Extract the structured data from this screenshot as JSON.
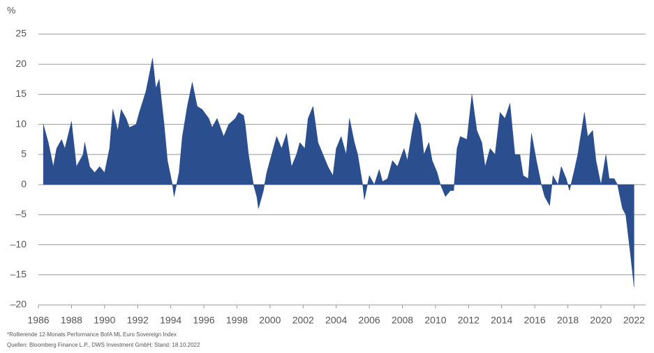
{
  "chart_data": {
    "type": "area",
    "y_unit": "%",
    "footnotes": [
      "*Rollierende 12-Monats Performance BofA ML Euro Sovereign Index",
      "Quellen: Bloomberg Finance L.P., DWS Investment GmbH; Stand: 18.10.2022"
    ],
    "color": "#2b4f8e",
    "x": [
      1986.3,
      1986.5,
      1986.6,
      1986.9,
      1987.1,
      1987.4,
      1987.6,
      1988.0,
      1988.3,
      1988.7,
      1988.8,
      1989.1,
      1989.4,
      1989.7,
      1990.0,
      1990.3,
      1990.5,
      1990.8,
      1991.0,
      1991.3,
      1991.5,
      1991.9,
      1992.1,
      1992.5,
      1992.9,
      1993.1,
      1993.3,
      1993.6,
      1993.8,
      1994.1,
      1994.2,
      1994.5,
      1994.7,
      1995.0,
      1995.3,
      1995.6,
      1995.9,
      1996.3,
      1996.5,
      1996.8,
      1997.2,
      1997.5,
      1997.9,
      1998.1,
      1998.4,
      1998.5,
      1998.7,
      1999.0,
      1999.2,
      1999.3,
      1999.6,
      1999.8,
      2000.1,
      2000.4,
      2000.7,
      2001.0,
      2001.3,
      2001.6,
      2001.8,
      2002.1,
      2002.3,
      2002.6,
      2002.9,
      2003.2,
      2003.5,
      2003.8,
      2004.0,
      2004.3,
      2004.6,
      2004.8,
      2005.1,
      2005.3,
      2005.6,
      2005.7,
      2006.0,
      2006.3,
      2006.6,
      2006.8,
      2007.1,
      2007.4,
      2007.7,
      2008.1,
      2008.3,
      2008.6,
      2008.8,
      2009.1,
      2009.3,
      2009.6,
      2009.8,
      2010.1,
      2010.3,
      2010.6,
      2010.9,
      2011.1,
      2011.3,
      2011.5,
      2011.9,
      2012.2,
      2012.5,
      2012.8,
      2013.0,
      2013.3,
      2013.6,
      2013.9,
      2014.2,
      2014.5,
      2014.8,
      2015.1,
      2015.3,
      2015.6,
      2015.8,
      2016.1,
      2016.4,
      2016.6,
      2016.9,
      2017.1,
      2017.4,
      2017.6,
      2017.9,
      2018.1,
      2018.4,
      2018.6,
      2019.0,
      2019.2,
      2019.5,
      2019.7,
      2020.0,
      2020.3,
      2020.5,
      2020.8,
      2021.0,
      2021.3,
      2021.5,
      2021.8,
      2022.0
    ],
    "values": [
      10,
      8,
      7,
      3,
      6,
      7.5,
      6,
      10.5,
      3,
      5,
      7,
      3,
      2,
      3,
      2,
      6,
      12.5,
      9,
      12.5,
      11,
      9.5,
      10,
      12,
      15.5,
      21,
      16,
      17.5,
      10,
      4,
      0,
      -2,
      2,
      8,
      13,
      17,
      13,
      12.5,
      11,
      9.5,
      11,
      8,
      10,
      11,
      12,
      11.5,
      10,
      5,
      0,
      -2,
      -4,
      -1,
      2,
      5,
      8,
      6,
      8.5,
      3,
      5,
      7,
      6,
      11,
      13,
      7,
      5,
      3,
      1.5,
      6,
      8,
      5,
      11,
      7,
      5,
      0,
      -2.5,
      1.5,
      0,
      2.5,
      0.5,
      1,
      4,
      3,
      6,
      4,
      9,
      12,
      10,
      5,
      7,
      4,
      2,
      0,
      -2,
      -1,
      -1,
      6,
      8,
      7.5,
      15,
      9,
      7,
      3,
      6,
      5,
      12,
      11,
      13.5,
      5,
      5,
      1.5,
      1,
      8.5,
      4,
      0,
      -2,
      -3.5,
      1.5,
      0,
      3,
      1,
      -1,
      2.5,
      5,
      12,
      8,
      9,
      4,
      0,
      5,
      1,
      1,
      0,
      -4,
      -5,
      -12,
      -17
    ],
    "xlim": [
      1986,
      2022.7
    ],
    "ylim": [
      -20,
      25
    ],
    "xticks": [
      1986,
      1988,
      1990,
      1992,
      1994,
      1996,
      1998,
      2000,
      2002,
      2004,
      2006,
      2008,
      2010,
      2012,
      2014,
      2016,
      2018,
      2020,
      2022
    ],
    "yticks": [
      {
        "value": -20,
        "label": "–20"
      },
      {
        "value": -15,
        "label": "–15"
      },
      {
        "value": -10,
        "label": "–10"
      },
      {
        "value": -5,
        "label": "–5"
      },
      0,
      5,
      10,
      15,
      20,
      25
    ],
    "grid": true
  }
}
